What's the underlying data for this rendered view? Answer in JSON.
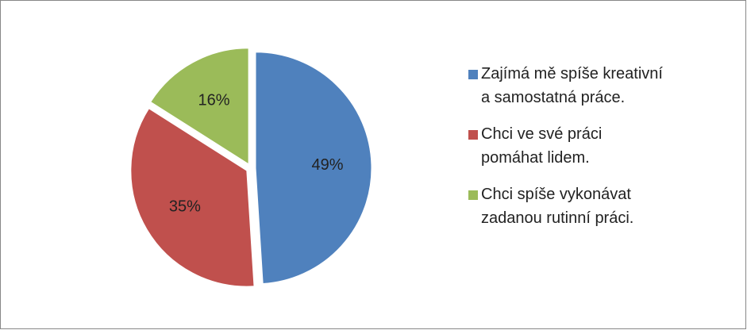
{
  "chart_data": {
    "type": "pie",
    "categories": [
      "Zajímá mě spíše kreativní a samostatná práce.",
      "Chci ve své práci pomáhat lidem.",
      "Chci spíše vykonávat zadanou rutinní práci."
    ],
    "values": [
      49,
      35,
      16
    ],
    "value_labels": [
      "49%",
      "35%",
      "16%"
    ],
    "colors": [
      "#4f81bd",
      "#c0504d",
      "#9bbb59"
    ],
    "legend": "right"
  }
}
